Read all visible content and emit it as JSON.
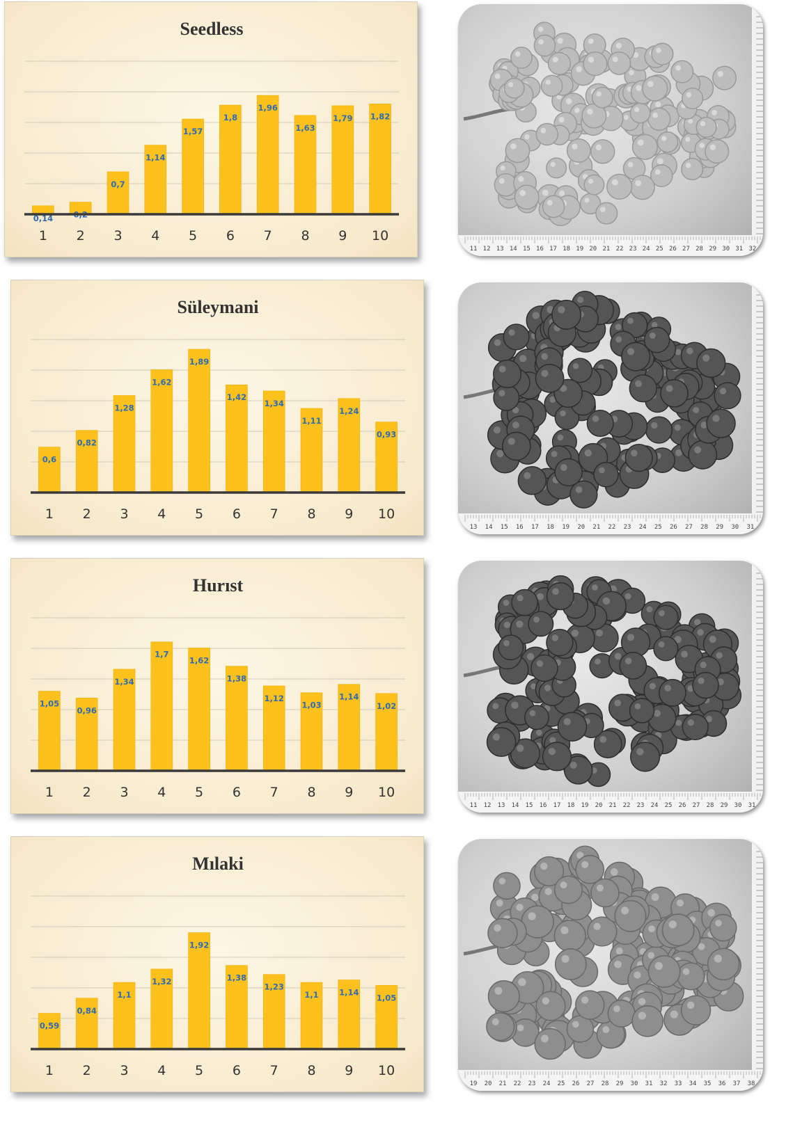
{
  "chart_data": [
    {
      "type": "bar",
      "title": "Seedless",
      "categories": [
        "1",
        "2",
        "3",
        "4",
        "5",
        "6",
        "7",
        "8",
        "9",
        "10"
      ],
      "values": [
        0.14,
        0.2,
        0.7,
        1.14,
        1.57,
        1.8,
        1.96,
        1.63,
        1.79,
        1.82
      ],
      "labels": [
        "0,14",
        "0,2",
        "0,7",
        "1,14",
        "1,57",
        "1,8",
        "1,96",
        "1,63",
        "1,79",
        "1,82"
      ],
      "ylim": [
        0,
        2.5
      ],
      "grid": true
    },
    {
      "type": "bar",
      "title": "Süleymani",
      "categories": [
        "1",
        "2",
        "3",
        "4",
        "5",
        "6",
        "7",
        "8",
        "9",
        "10"
      ],
      "values": [
        0.6,
        0.82,
        1.28,
        1.62,
        1.89,
        1.42,
        1.34,
        1.11,
        1.24,
        0.93
      ],
      "labels": [
        "0,6",
        "0,82",
        "1,28",
        "1,62",
        "1,89",
        "1,42",
        "1,34",
        "1,11",
        "1,24",
        "0,93"
      ],
      "ylim": [
        0,
        2.0
      ],
      "grid": true
    },
    {
      "type": "bar",
      "title": "Hurıst",
      "categories": [
        "1",
        "2",
        "3",
        "4",
        "5",
        "6",
        "7",
        "8",
        "9",
        "10"
      ],
      "values": [
        1.05,
        0.96,
        1.34,
        1.7,
        1.62,
        1.38,
        1.12,
        1.03,
        1.14,
        1.02
      ],
      "labels": [
        "1,05",
        "0,96",
        "1,34",
        "1,7",
        "1,62",
        "1,38",
        "1,12",
        "1,03",
        "1,14",
        "1,02"
      ],
      "ylim": [
        0,
        2.0
      ],
      "grid": true
    },
    {
      "type": "bar",
      "title": "Mılaki",
      "categories": [
        "1",
        "2",
        "3",
        "4",
        "5",
        "6",
        "7",
        "8",
        "9",
        "10"
      ],
      "values": [
        0.59,
        0.84,
        1.1,
        1.32,
        1.92,
        1.38,
        1.23,
        1.1,
        1.14,
        1.05
      ],
      "labels": [
        "0,59",
        "0,84",
        "1,1",
        "1,32",
        "1,92",
        "1,38",
        "1,23",
        "1,1",
        "1,14",
        "1,05"
      ],
      "ylim": [
        0,
        2.5
      ],
      "grid": true
    }
  ],
  "colors": {
    "bar": "#fdc11e",
    "bar_edge": "#f0b000",
    "label": "#2f6bb3",
    "axis": "#3a3a3a",
    "grid": "#cfcabc",
    "tick": "#333333",
    "title": "#333333"
  },
  "photos": [
    {
      "ruler_numbers": [
        "11",
        "12",
        "13",
        "14",
        "15",
        "16",
        "17",
        "18",
        "19",
        "20",
        "21",
        "22",
        "23",
        "24",
        "25",
        "26",
        "27",
        "28",
        "29",
        "30",
        "31",
        "32"
      ],
      "grapes": "light"
    },
    {
      "ruler_numbers": [
        "13",
        "14",
        "15",
        "16",
        "17",
        "18",
        "19",
        "20",
        "21",
        "22",
        "23",
        "24",
        "25",
        "26",
        "27",
        "28",
        "29",
        "30",
        "31"
      ],
      "grapes": "dark"
    },
    {
      "ruler_numbers": [
        "11",
        "12",
        "13",
        "14",
        "15",
        "16",
        "17",
        "18",
        "19",
        "20",
        "21",
        "22",
        "23",
        "24",
        "25",
        "26",
        "27",
        "28",
        "29",
        "30",
        "31"
      ],
      "grapes": "dark"
    },
    {
      "ruler_numbers": [
        "19",
        "20",
        "21",
        "22",
        "23",
        "24",
        "25",
        "26",
        "27",
        "28",
        "29",
        "30",
        "31",
        "32",
        "33",
        "34",
        "35",
        "36",
        "37",
        "38"
      ],
      "grapes": "medium"
    }
  ]
}
